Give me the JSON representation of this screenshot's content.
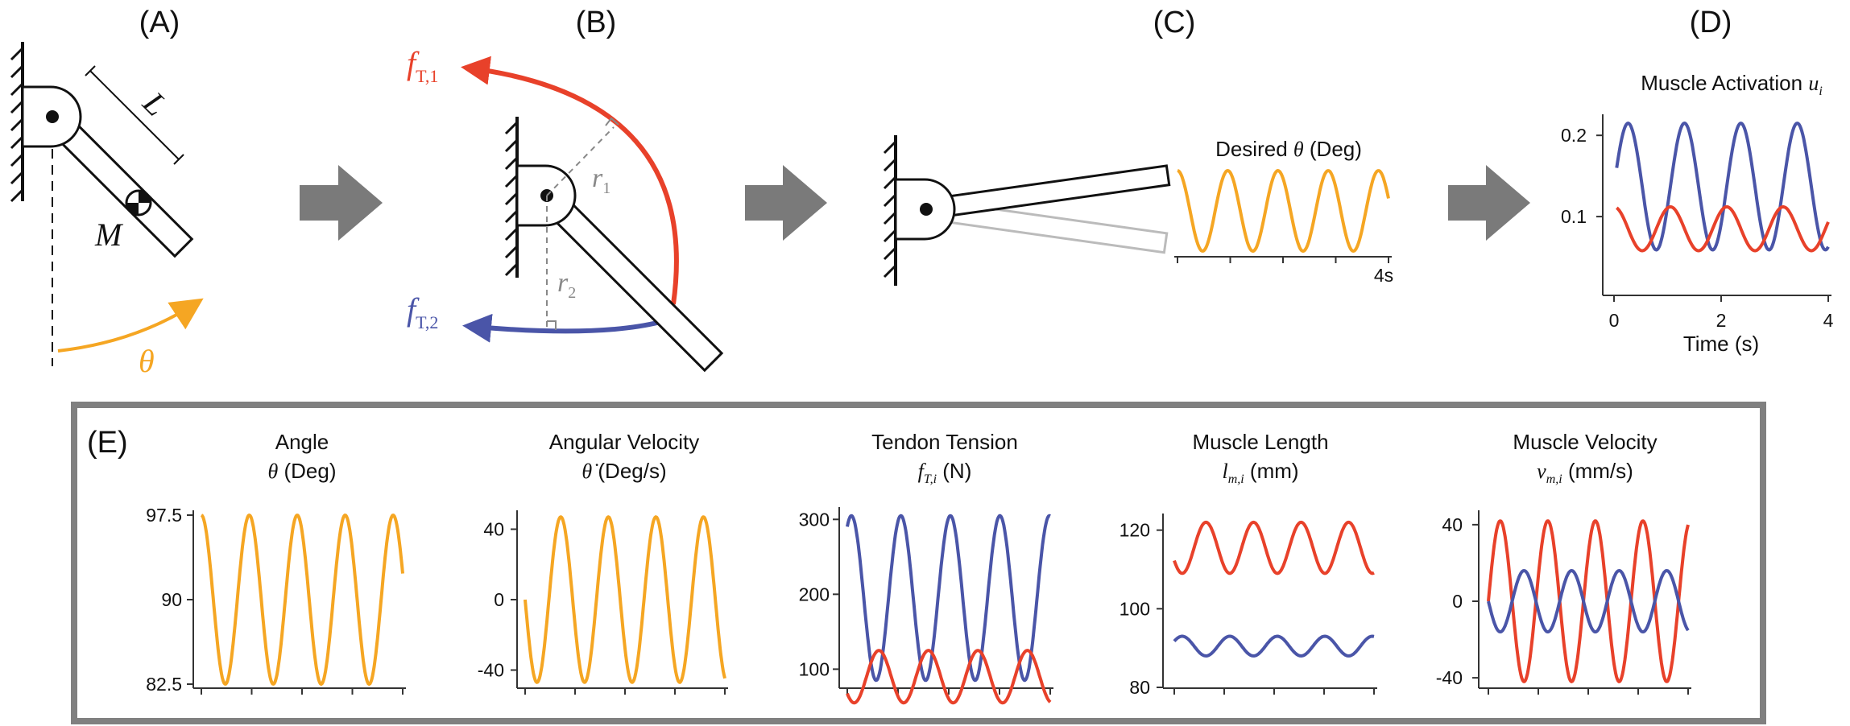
{
  "panels": {
    "A": {
      "label": "(A)",
      "length": "L",
      "mass": "M",
      "angle": "θ"
    },
    "B": {
      "label": "(B)",
      "force1": "f",
      "force1_sub": "T,1",
      "force2": "f",
      "force2_sub": "T,2",
      "r1": "r",
      "r1_sub": "1",
      "r2": "r",
      "r2_sub": "2"
    },
    "C": {
      "label": "(C)",
      "title_pre": "Desired ",
      "title_sym": "θ",
      "title_post": " (Deg)",
      "xtick": "4s"
    },
    "D": {
      "label": "(D)",
      "title_pre": "Muscle Activation ",
      "title_sym": "u",
      "title_sub": "i",
      "xlabel": "Time (s)"
    },
    "E": {
      "label": "(E)",
      "plots": [
        {
          "title": "Angle",
          "sub_sym": "θ",
          "sub_rest": " (Deg)"
        },
        {
          "title": "Angular Velocity",
          "sub_sym": "θ̇",
          "sub_rest": " (Deg/s)"
        },
        {
          "title": "Tendon Tension",
          "sub_sym": "f",
          "sub_sub": "T,i",
          "sub_rest": " (N)"
        },
        {
          "title": "Muscle Length",
          "sub_sym": "l",
          "sub_sub": "m,i",
          "sub_rest": " (mm)"
        },
        {
          "title": "Muscle Velocity",
          "sub_sym": "v",
          "sub_sub": "m,i",
          "sub_rest": " (mm/s)"
        }
      ]
    }
  },
  "colors": {
    "orange": "#f5a623",
    "red": "#e8412a",
    "blue": "#4a55a8",
    "arrow": "#7a7a7a",
    "frame": "#808080"
  },
  "chart_data": [
    {
      "type": "line",
      "id": "desired_theta",
      "x_range": [
        0,
        4
      ],
      "xticks": [
        0,
        1,
        2,
        3,
        4
      ],
      "xtick_labels": [
        "",
        "",
        "",
        "",
        "4s"
      ],
      "series": [
        {
          "color": "orange",
          "fn": {
            "offset": 90,
            "amp": 7.5,
            "cycles": 4.2,
            "phase": 90,
            "x": [
              0,
              4
            ]
          }
        }
      ]
    },
    {
      "type": "line",
      "id": "activation",
      "x_range": [
        0,
        4
      ],
      "xticks": [
        0,
        2,
        4
      ],
      "xtick_labels": [
        "0",
        "2",
        "4"
      ],
      "y_range": [
        0,
        0.22
      ],
      "yticks": [
        0.1,
        0.2
      ],
      "ytick_labels": [
        "0.1",
        "0.2"
      ],
      "series": [
        {
          "color": "blue",
          "fn": {
            "offset": 0.137,
            "amp": 0.078,
            "cycles": 3.8,
            "phase": 0,
            "x": [
              0.05,
              4
            ]
          }
        },
        {
          "color": "red",
          "fn": {
            "offset": 0.085,
            "amp": 0.027,
            "cycles": 3.8,
            "phase": 90,
            "x": [
              0.05,
              4
            ]
          }
        }
      ]
    },
    {
      "type": "line",
      "id": "angle",
      "y_range": [
        82.5,
        97.5
      ],
      "yticks": [
        82.5,
        90,
        97.5
      ],
      "ytick_labels": [
        "82.5",
        "90",
        "97.5"
      ],
      "series": [
        {
          "color": "orange",
          "fn": {
            "offset": 90,
            "amp": 7.5,
            "cycles": 4.2,
            "phase": 90
          }
        }
      ]
    },
    {
      "type": "line",
      "id": "angular_velocity",
      "y_range": [
        -48,
        48
      ],
      "yticks": [
        -40,
        0,
        40
      ],
      "ytick_labels": [
        "-40",
        "0",
        "40"
      ],
      "series": [
        {
          "color": "orange",
          "fn": {
            "offset": 0,
            "amp": 47,
            "cycles": 4.2,
            "phase": 180
          }
        }
      ]
    },
    {
      "type": "line",
      "id": "tendon_tension",
      "y_range": [
        80,
        310
      ],
      "yticks": [
        100,
        200,
        300
      ],
      "ytick_labels": [
        "100",
        "200",
        "300"
      ],
      "series": [
        {
          "color": "blue",
          "fn": {
            "offset": 195,
            "amp": 110,
            "cycles": 4.1,
            "phase": 60
          }
        },
        {
          "color": "red",
          "fn": {
            "offset": 90,
            "amp": 35,
            "cycles": 4.1,
            "phase": 220
          }
        }
      ]
    },
    {
      "type": "line",
      "id": "muscle_length",
      "y_range": [
        80,
        123
      ],
      "yticks": [
        80,
        100,
        120
      ],
      "ytick_labels": [
        "80",
        "100",
        "120"
      ],
      "series": [
        {
          "color": "red",
          "fn": {
            "offset": 115.5,
            "amp": 6.5,
            "cycles": 4.2,
            "phase": 210
          }
        },
        {
          "color": "blue",
          "fn": {
            "offset": 90.5,
            "amp": 2.5,
            "cycles": 4.2,
            "phase": 30
          }
        }
      ]
    },
    {
      "type": "line",
      "id": "muscle_velocity",
      "y_range": [
        -45,
        45
      ],
      "yticks": [
        -40,
        0,
        40
      ],
      "ytick_labels": [
        "-40",
        "0",
        "40"
      ],
      "series": [
        {
          "color": "red",
          "fn": {
            "offset": 0,
            "amp": 42,
            "cycles": 4.2,
            "phase": 0
          }
        },
        {
          "color": "blue",
          "fn": {
            "offset": 0,
            "amp": 16,
            "cycles": 4.2,
            "phase": 180
          }
        }
      ]
    }
  ]
}
